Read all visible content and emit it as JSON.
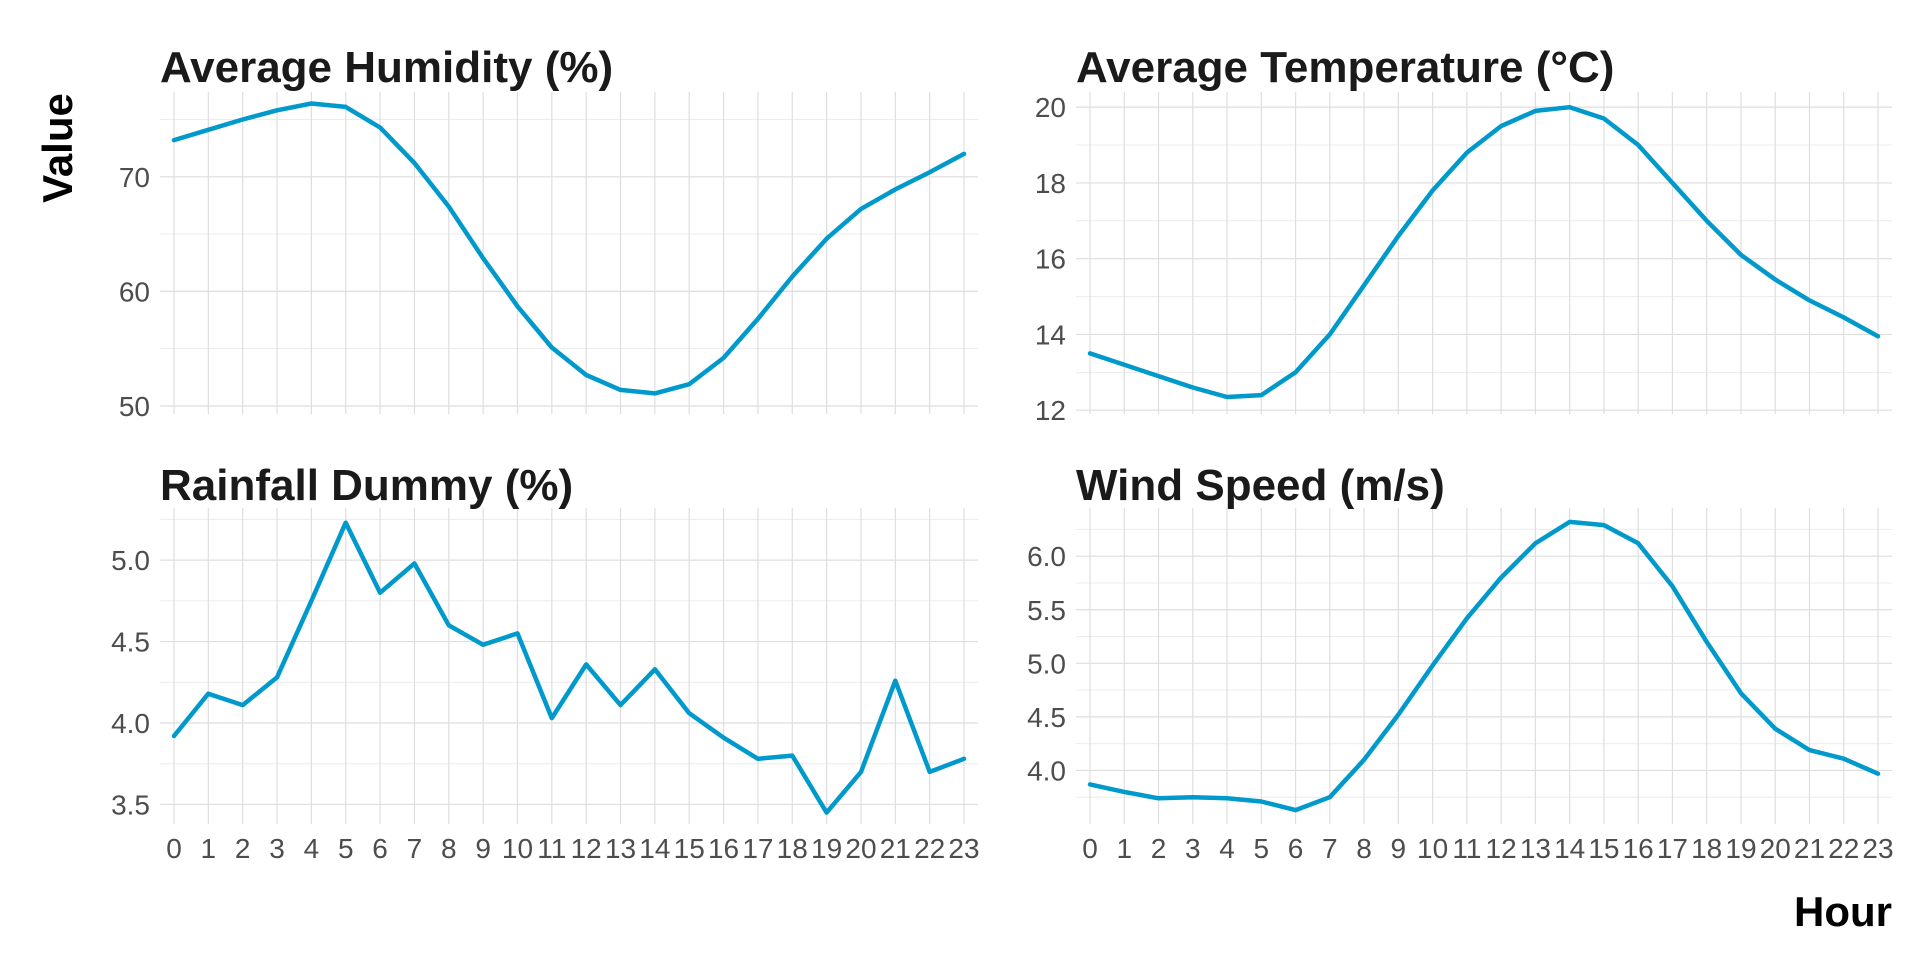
{
  "figure": {
    "xlabel": "Hour",
    "ylabel": "Value",
    "line_color": "#0099CC"
  },
  "chart_data": [
    {
      "type": "line",
      "title": "Average Humidity (%)",
      "x": [
        0,
        1,
        2,
        3,
        4,
        5,
        6,
        7,
        8,
        9,
        10,
        11,
        12,
        13,
        14,
        15,
        16,
        17,
        18,
        19,
        20,
        21,
        22,
        23
      ],
      "values": [
        73.2,
        74.1,
        75.0,
        75.8,
        76.4,
        76.1,
        74.3,
        71.2,
        67.4,
        62.9,
        58.7,
        55.1,
        52.7,
        51.4,
        51.1,
        51.9,
        54.2,
        57.6,
        61.3,
        64.6,
        67.2,
        68.9,
        70.4,
        72.0
      ],
      "ylim": [
        49.3,
        77.4
      ],
      "yticks": [
        50,
        60,
        70
      ],
      "show_x_ticks": false
    },
    {
      "type": "line",
      "title": "Average Temperature (°C)",
      "x": [
        0,
        1,
        2,
        3,
        4,
        5,
        6,
        7,
        8,
        9,
        10,
        11,
        12,
        13,
        14,
        15,
        16,
        17,
        18,
        19,
        20,
        21,
        22,
        23
      ],
      "values": [
        13.5,
        13.2,
        12.9,
        12.6,
        12.35,
        12.4,
        13.0,
        14.0,
        15.3,
        16.6,
        17.8,
        18.8,
        19.5,
        19.9,
        20.0,
        19.7,
        19.0,
        18.0,
        17.0,
        16.1,
        15.45,
        14.9,
        14.45,
        13.95
      ],
      "ylim": [
        11.9,
        20.4
      ],
      "yticks": [
        12,
        14,
        16,
        18,
        20
      ],
      "show_x_ticks": false
    },
    {
      "type": "line",
      "title": "Rainfall Dummy (%)",
      "x": [
        0,
        1,
        2,
        3,
        4,
        5,
        6,
        7,
        8,
        9,
        10,
        11,
        12,
        13,
        14,
        15,
        16,
        17,
        18,
        19,
        20,
        21,
        22,
        23
      ],
      "values": [
        3.92,
        4.18,
        4.11,
        4.28,
        4.75,
        5.23,
        4.8,
        4.98,
        4.6,
        4.48,
        4.55,
        4.03,
        4.36,
        4.11,
        4.33,
        4.06,
        3.91,
        3.78,
        3.8,
        3.45,
        3.7,
        4.26,
        3.7,
        3.78
      ],
      "ylim": [
        3.38,
        5.32
      ],
      "yticks": [
        3.5,
        4.0,
        4.5,
        5.0
      ],
      "ytick_labels": [
        "3.5",
        "4.0",
        "4.5",
        "5.0"
      ],
      "show_x_ticks": true
    },
    {
      "type": "line",
      "title": "Wind Speed (m/s)",
      "x": [
        0,
        1,
        2,
        3,
        4,
        5,
        6,
        7,
        8,
        9,
        10,
        11,
        12,
        13,
        14,
        15,
        16,
        17,
        18,
        19,
        20,
        21,
        22,
        23
      ],
      "values": [
        3.87,
        3.8,
        3.74,
        3.75,
        3.74,
        3.71,
        3.63,
        3.75,
        4.1,
        4.52,
        4.98,
        5.42,
        5.8,
        6.12,
        6.32,
        6.29,
        6.12,
        5.72,
        5.2,
        4.72,
        4.39,
        4.19,
        4.11,
        3.97
      ],
      "ylim": [
        3.5,
        6.45
      ],
      "yticks": [
        4.0,
        4.5,
        5.0,
        5.5,
        6.0
      ],
      "ytick_labels": [
        "4.0",
        "4.5",
        "5.0",
        "5.5",
        "6.0"
      ],
      "show_x_ticks": true
    }
  ]
}
